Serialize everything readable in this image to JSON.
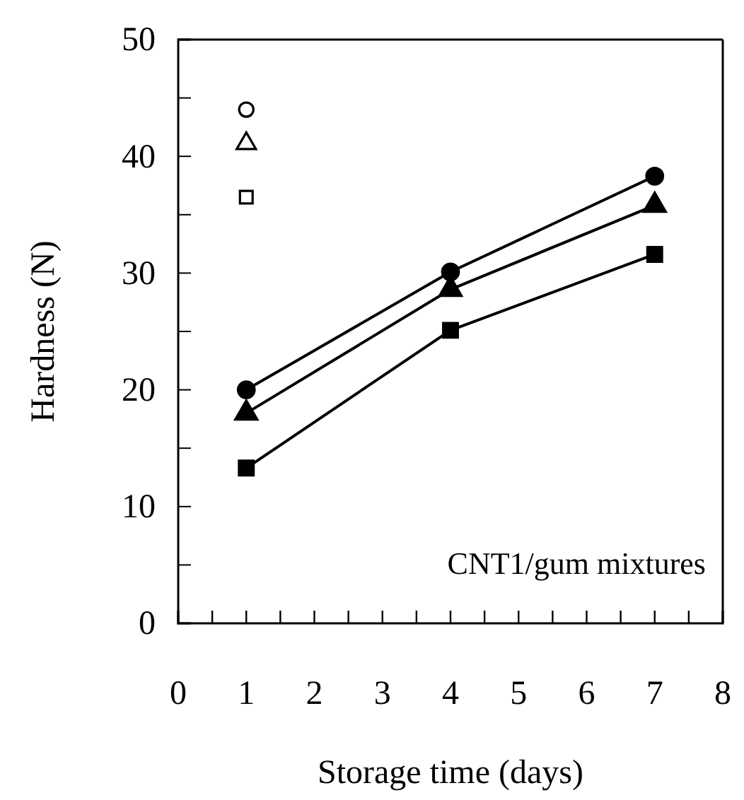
{
  "chart_data": {
    "type": "line",
    "xlabel": "Storage time (days)",
    "ylabel": "Hardness (N)",
    "x": [
      1,
      4,
      7
    ],
    "series": [
      {
        "marker": "circle",
        "color": "#000000",
        "values": [
          20.0,
          30.1,
          38.3
        ]
      },
      {
        "marker": "triangle",
        "color": "#000000",
        "values": [
          18.0,
          28.6,
          35.8
        ]
      },
      {
        "marker": "square",
        "color": "#000000",
        "values": [
          13.3,
          25.1,
          31.6
        ]
      },
      {
        "type": "scatter",
        "marker": "circle",
        "color": "#000000",
        "values": [
          44.0,
          null,
          null
        ]
      },
      {
        "type": "scatter",
        "marker": "triangle",
        "color": "#000000",
        "values": [
          41.1,
          null,
          null
        ]
      },
      {
        "type": "scatter",
        "marker": "square",
        "color": "#000000",
        "values": [
          36.5,
          null,
          null
        ]
      }
    ],
    "xlim": [
      0,
      8
    ],
    "xticks": [
      0,
      {
        "value": 0.5,
        "label": null
      },
      1,
      {
        "value": 1.5,
        "label": null
      },
      2,
      {
        "value": 2.5,
        "label": null
      },
      3,
      {
        "value": 3.5,
        "label": null
      },
      4,
      {
        "value": 4.5,
        "label": null
      },
      5,
      {
        "value": 5.5,
        "label": null
      },
      6,
      {
        "value": 6.5,
        "label": null
      },
      7,
      {
        "value": 7.5,
        "label": null
      },
      8
    ],
    "ylim": [
      0,
      50
    ],
    "yticks": [
      0,
      {
        "value": 5,
        "label": null
      },
      10,
      {
        "value": 15,
        "label": null
      },
      20,
      {
        "value": 25,
        "label": null
      },
      30,
      {
        "value": 35,
        "label": null
      },
      40,
      {
        "value": 45,
        "label": null
      },
      50
    ],
    "annotations": [
      "CNT1/gum mixtures"
    ],
    "grid": false
  }
}
